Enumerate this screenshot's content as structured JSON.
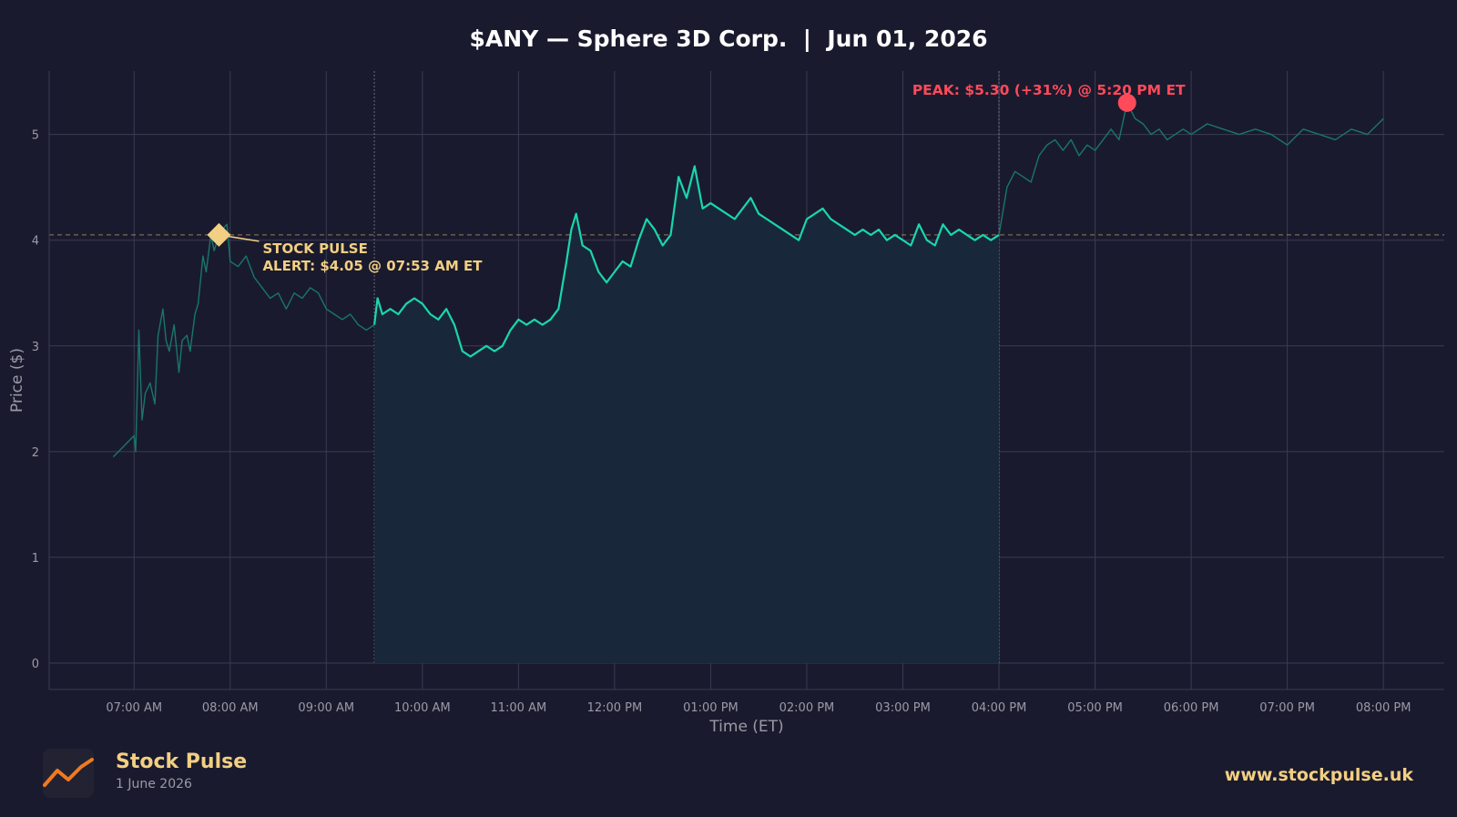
{
  "chart_data": {
    "type": "line",
    "title": "$ANY — Sphere 3D Corp.  |  Jun 01, 2026",
    "xlabel": "Time (ET)",
    "ylabel": "Price ($)",
    "ylim": [
      -0.25,
      5.6
    ],
    "yticks": [
      0,
      1,
      2,
      3,
      4,
      5
    ],
    "xlim": [
      "06:07",
      "08:38 PM"
    ],
    "xtick_labels": [
      "07:00 AM",
      "08:00 AM",
      "09:00 AM",
      "10:00 AM",
      "11:00 AM",
      "12:00 PM",
      "01:00 PM",
      "02:00 PM",
      "03:00 PM",
      "04:00 PM",
      "05:00 PM",
      "06:00 PM",
      "07:00 PM",
      "08:00 PM"
    ],
    "grid": true,
    "market_session": {
      "open": "09:30 AM",
      "close": "04:00 PM"
    },
    "reference_line": {
      "value": 4.05,
      "style": "dashed"
    },
    "series": [
      {
        "segment": "pre-market",
        "x": [
          "06:47 AM",
          "07:00 AM",
          "07:01 AM",
          "07:03 AM",
          "07:05 AM",
          "07:07 AM",
          "07:10 AM",
          "07:13 AM",
          "07:15 AM",
          "07:18 AM",
          "07:20 AM",
          "07:22 AM",
          "07:25 AM",
          "07:28 AM",
          "07:30 AM",
          "07:33 AM",
          "07:35 AM",
          "07:38 AM",
          "07:40 AM",
          "07:43 AM",
          "07:45 AM",
          "07:48 AM",
          "07:50 AM",
          "07:53 AM",
          "07:55 AM",
          "07:58 AM",
          "08:00 AM",
          "08:05 AM",
          "08:10 AM",
          "08:15 AM",
          "08:20 AM",
          "08:25 AM",
          "08:30 AM",
          "08:35 AM",
          "08:40 AM",
          "08:45 AM",
          "08:50 AM",
          "08:55 AM",
          "09:00 AM",
          "09:05 AM",
          "09:10 AM",
          "09:15 AM",
          "09:20 AM",
          "09:25 AM",
          "09:30 AM"
        ],
        "y": [
          1.95,
          2.15,
          2.0,
          3.15,
          2.3,
          2.55,
          2.65,
          2.45,
          3.1,
          3.35,
          3.05,
          2.95,
          3.2,
          2.75,
          3.05,
          3.1,
          2.95,
          3.3,
          3.4,
          3.85,
          3.7,
          4.05,
          3.9,
          4.05,
          4.1,
          4.15,
          3.8,
          3.75,
          3.85,
          3.65,
          3.55,
          3.45,
          3.5,
          3.35,
          3.5,
          3.45,
          3.55,
          3.5,
          3.35,
          3.3,
          3.25,
          3.3,
          3.2,
          3.15,
          3.2
        ]
      },
      {
        "segment": "regular session",
        "x": [
          "09:30 AM",
          "09:32 AM",
          "09:35 AM",
          "09:40 AM",
          "09:45 AM",
          "09:50 AM",
          "09:55 AM",
          "10:00 AM",
          "10:05 AM",
          "10:10 AM",
          "10:15 AM",
          "10:20 AM",
          "10:25 AM",
          "10:30 AM",
          "10:35 AM",
          "10:40 AM",
          "10:45 AM",
          "10:50 AM",
          "10:55 AM",
          "11:00 AM",
          "11:05 AM",
          "11:10 AM",
          "11:15 AM",
          "11:20 AM",
          "11:25 AM",
          "11:30 AM",
          "11:33 AM",
          "11:36 AM",
          "11:40 AM",
          "11:45 AM",
          "11:50 AM",
          "11:55 AM",
          "12:00 PM",
          "12:05 PM",
          "12:10 PM",
          "12:15 PM",
          "12:20 PM",
          "12:25 PM",
          "12:30 PM",
          "12:35 PM",
          "12:40 PM",
          "12:45 PM",
          "12:50 PM",
          "12:55 PM",
          "01:00 PM",
          "01:05 PM",
          "01:10 PM",
          "01:15 PM",
          "01:20 PM",
          "01:25 PM",
          "01:30 PM",
          "01:35 PM",
          "01:40 PM",
          "01:45 PM",
          "01:50 PM",
          "01:55 PM",
          "02:00 PM",
          "02:05 PM",
          "02:10 PM",
          "02:15 PM",
          "02:20 PM",
          "02:25 PM",
          "02:30 PM",
          "02:35 PM",
          "02:40 PM",
          "02:45 PM",
          "02:50 PM",
          "02:55 PM",
          "03:00 PM",
          "03:05 PM",
          "03:10 PM",
          "03:15 PM",
          "03:20 PM",
          "03:25 PM",
          "03:30 PM",
          "03:35 PM",
          "03:40 PM",
          "03:45 PM",
          "03:50 PM",
          "03:55 PM",
          "04:00 PM"
        ],
        "y": [
          3.2,
          3.45,
          3.3,
          3.35,
          3.3,
          3.4,
          3.45,
          3.4,
          3.3,
          3.25,
          3.35,
          3.2,
          2.95,
          2.9,
          2.95,
          3.0,
          2.95,
          3.0,
          3.15,
          3.25,
          3.2,
          3.25,
          3.2,
          3.25,
          3.35,
          3.8,
          4.1,
          4.25,
          3.95,
          3.9,
          3.7,
          3.6,
          3.7,
          3.8,
          3.75,
          4.0,
          4.2,
          4.1,
          3.95,
          4.05,
          4.6,
          4.4,
          4.7,
          4.3,
          4.35,
          4.3,
          4.25,
          4.2,
          4.3,
          4.4,
          4.25,
          4.2,
          4.15,
          4.1,
          4.05,
          4.0,
          4.2,
          4.25,
          4.3,
          4.2,
          4.15,
          4.1,
          4.05,
          4.1,
          4.05,
          4.1,
          4.0,
          4.05,
          4.0,
          3.95,
          4.15,
          4.0,
          3.95,
          4.15,
          4.05,
          4.1,
          4.05,
          4.0,
          4.05,
          4.0,
          4.05
        ]
      },
      {
        "segment": "after-hours",
        "x": [
          "04:00 PM",
          "04:05 PM",
          "04:10 PM",
          "04:15 PM",
          "04:20 PM",
          "04:25 PM",
          "04:30 PM",
          "04:35 PM",
          "04:40 PM",
          "04:45 PM",
          "04:50 PM",
          "04:55 PM",
          "05:00 PM",
          "05:05 PM",
          "05:10 PM",
          "05:15 PM",
          "05:20 PM",
          "05:25 PM",
          "05:30 PM",
          "05:35 PM",
          "05:40 PM",
          "05:45 PM",
          "05:50 PM",
          "05:55 PM",
          "06:00 PM",
          "06:10 PM",
          "06:20 PM",
          "06:30 PM",
          "06:40 PM",
          "06:50 PM",
          "07:00 PM",
          "07:10 PM",
          "07:20 PM",
          "07:30 PM",
          "07:40 PM",
          "07:50 PM",
          "08:00 PM"
        ],
        "y": [
          4.05,
          4.5,
          4.65,
          4.6,
          4.55,
          4.8,
          4.9,
          4.95,
          4.85,
          4.95,
          4.8,
          4.9,
          4.85,
          4.95,
          5.05,
          4.95,
          5.3,
          5.15,
          5.1,
          5.0,
          5.05,
          4.95,
          5.0,
          5.05,
          5.0,
          5.1,
          5.05,
          5.0,
          5.05,
          5.0,
          4.9,
          5.05,
          5.0,
          4.95,
          5.05,
          5.0,
          5.15
        ]
      }
    ],
    "annotations": [
      {
        "kind": "alert",
        "x": "07:53 AM",
        "y": 4.05,
        "line1": "STOCK PULSE",
        "line2": "ALERT: $4.05 @ 07:53 AM ET",
        "color": "#f2cf82"
      },
      {
        "kind": "peak",
        "x": "05:20 PM",
        "y": 5.3,
        "text": "PEAK: $5.30 (+31%) @ 5:20 PM ET",
        "color": "#ff4a5a"
      }
    ],
    "colors": {
      "background": "#1a1a2e",
      "line": "#1ad6ad",
      "line_muted": "#17776a",
      "fill": "#18283a",
      "grid": "#3a3c52",
      "tick_label": "#9a9aa5",
      "alert": "#f2cf82",
      "peak": "#ff4a5a"
    }
  },
  "footer": {
    "brand": "Stock Pulse",
    "date": "1 June 2026",
    "website": "www.stockpulse.uk",
    "logo_icon": "trend-line-icon",
    "logo_colors": [
      "#f07a1e",
      "#f2cf82"
    ]
  }
}
